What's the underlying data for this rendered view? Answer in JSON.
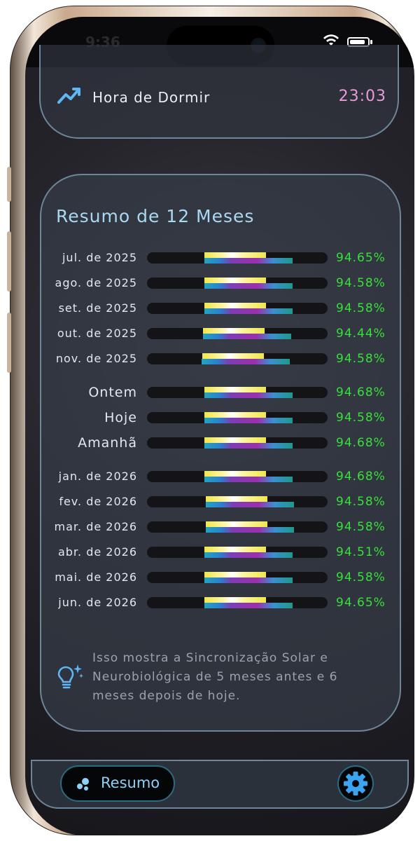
{
  "status": {
    "time": "9:36"
  },
  "bedtime": {
    "label": "Hora de Dormir",
    "time": "23:03"
  },
  "summary": {
    "title": "Resumo de 12 Meses",
    "rows": [
      {
        "label": "jul. de 2025",
        "pct": "94.65%",
        "big": false
      },
      {
        "label": "ago. de 2025",
        "pct": "94.58%",
        "big": false
      },
      {
        "label": "set. de 2025",
        "pct": "94.58%",
        "big": false
      },
      {
        "label": "out. de 2025",
        "pct": "94.44%",
        "big": false
      },
      {
        "label": "nov. de 2025",
        "pct": "94.58%",
        "big": false
      },
      {
        "label": "Ontem",
        "pct": "94.68%",
        "big": true
      },
      {
        "label": "Hoje",
        "pct": "94.58%",
        "big": true
      },
      {
        "label": "Amanhã",
        "pct": "94.68%",
        "big": true
      },
      {
        "label": "jan. de 2026",
        "pct": "94.68%",
        "big": false
      },
      {
        "label": "fev. de 2026",
        "pct": "94.58%",
        "big": false
      },
      {
        "label": "mar. de 2026",
        "pct": "94.58%",
        "big": false
      },
      {
        "label": "abr. de 2026",
        "pct": "94.51%",
        "big": false
      },
      {
        "label": "mai. de 2026",
        "pct": "94.58%",
        "big": false
      },
      {
        "label": "jun. de 2026",
        "pct": "94.65%",
        "big": false
      }
    ],
    "info_text": "Isso mostra a Sincronização Solar e Neurobiológica de 5 meses antes e 6 meses depois de hoje."
  },
  "tabs": {
    "resumo_label": "Resumo"
  },
  "colors": {
    "accent": "#8fd0f5",
    "percent": "#37e13a",
    "bedtime": "#e79bd7",
    "border": "#6d8699"
  },
  "icons": {
    "trend": "trending-up-icon",
    "info": "lightbulb-sparkle-icon",
    "tab": "bubbles-icon",
    "settings": "gear-icon"
  }
}
